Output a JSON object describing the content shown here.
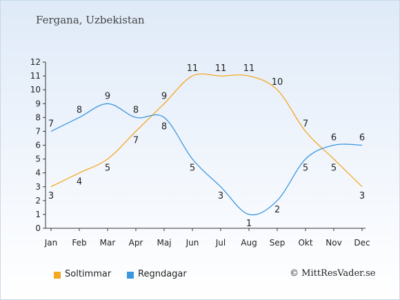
{
  "chart_data": {
    "type": "line",
    "title": "Fergana, Uzbekistan",
    "categories": [
      "Jan",
      "Feb",
      "Mar",
      "Apr",
      "Maj",
      "Jun",
      "Jul",
      "Aug",
      "Sep",
      "Okt",
      "Nov",
      "Dec"
    ],
    "ylim": [
      0,
      12
    ],
    "yticks": [
      0,
      1,
      2,
      3,
      4,
      5,
      6,
      7,
      8,
      9,
      10,
      11,
      12
    ],
    "grid": false,
    "legend_placement": "bottom-left",
    "series": [
      {
        "name": "Soltimmar",
        "color": "#f5a623",
        "values": [
          3,
          4,
          5,
          7,
          9,
          11,
          11,
          11,
          10,
          7,
          5,
          3
        ]
      },
      {
        "name": "Regndagar",
        "color": "#3b96e0",
        "values": [
          7,
          8,
          9,
          8,
          8,
          5,
          3,
          1,
          2,
          5,
          6,
          6
        ]
      }
    ]
  },
  "credit": "© MittResVader.se"
}
